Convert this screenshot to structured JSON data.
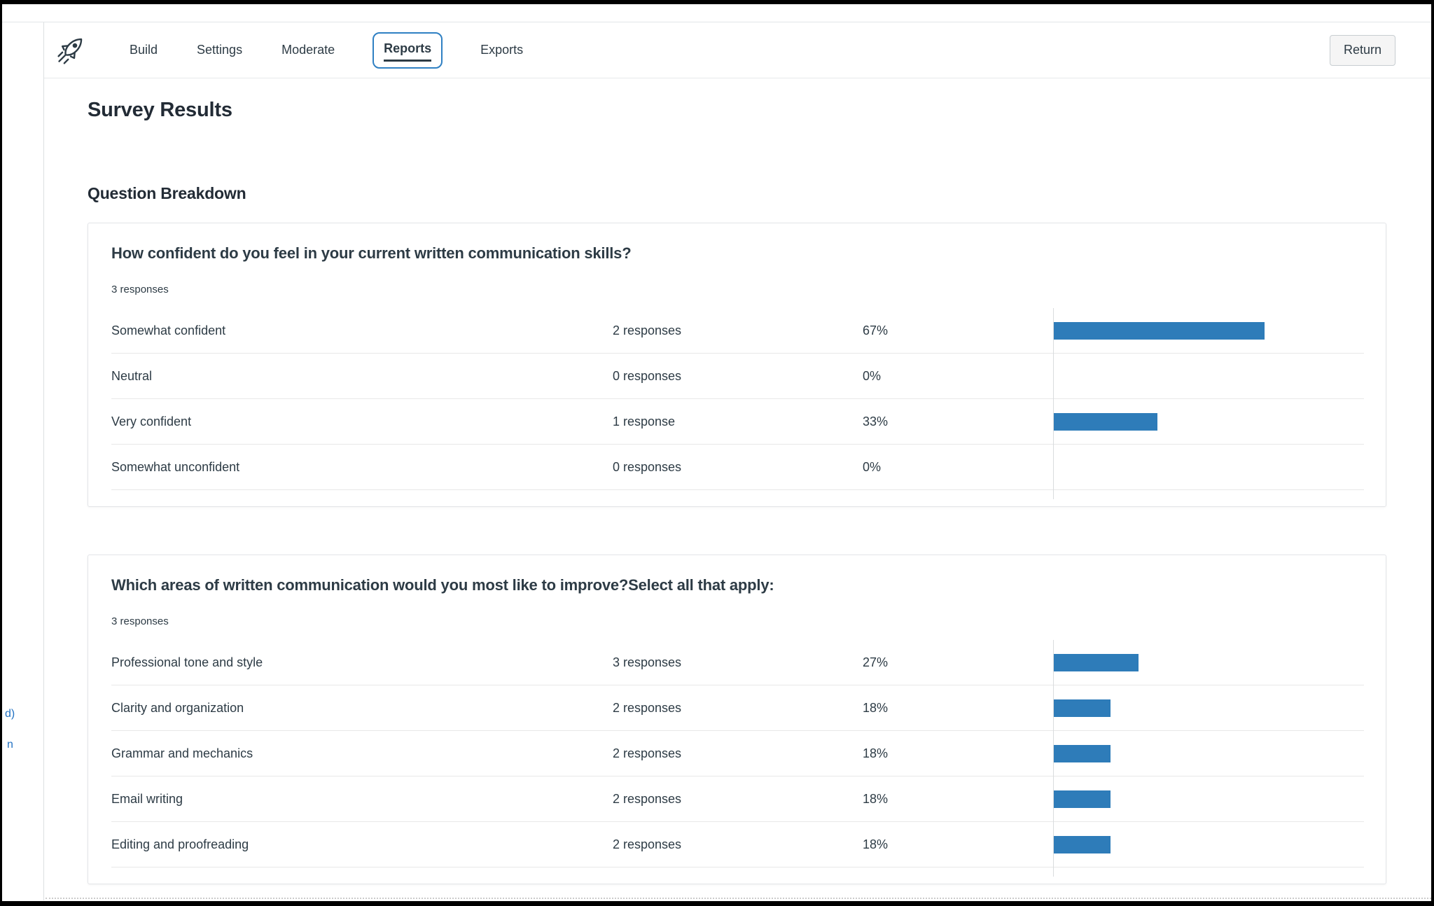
{
  "nav": {
    "logo": "rocket-logo",
    "tabs": [
      {
        "label": "Build",
        "active": false
      },
      {
        "label": "Settings",
        "active": false
      },
      {
        "label": "Moderate",
        "active": false
      },
      {
        "label": "Reports",
        "active": true
      },
      {
        "label": "Exports",
        "active": false
      }
    ],
    "return_button": "Return"
  },
  "page": {
    "title": "Survey Results",
    "section_heading": "Question Breakdown"
  },
  "chart_data": [
    {
      "type": "bar",
      "orientation": "horizontal",
      "title": "How confident do you feel in your current written communication skills?",
      "subtitle": "3 responses",
      "categories": [
        "Somewhat confident",
        "Neutral",
        "Very confident",
        "Somewhat unconfident"
      ],
      "values": [
        2,
        0,
        1,
        0
      ],
      "value_labels": [
        "2 responses",
        "0 responses",
        "1 response",
        "0 responses"
      ],
      "percents": [
        67,
        0,
        33,
        0
      ],
      "percent_labels": [
        "67%",
        "0%",
        "33%",
        "0%"
      ],
      "xlim": [
        0,
        100
      ],
      "grid": false,
      "legend": false,
      "bar_color": "#2E7CB9"
    },
    {
      "type": "bar",
      "orientation": "horizontal",
      "title": "Which areas of written communication would you most like to improve?Select all that apply:",
      "subtitle": "3 responses",
      "categories": [
        "Professional tone and style",
        "Clarity and organization",
        "Grammar and mechanics",
        "Email writing",
        "Editing and proofreading"
      ],
      "values": [
        3,
        2,
        2,
        2,
        2
      ],
      "value_labels": [
        "3 responses",
        "2 responses",
        "2 responses",
        "2 responses",
        "2 responses"
      ],
      "percents": [
        27,
        18,
        18,
        18,
        18
      ],
      "percent_labels": [
        "27%",
        "18%",
        "18%",
        "18%",
        "18%"
      ],
      "xlim": [
        0,
        100
      ],
      "grid": false,
      "legend": false,
      "bar_color": "#2E7CB9"
    }
  ],
  "left_edge": {
    "fragments": [
      "d)",
      "n"
    ]
  },
  "colors": {
    "text": "#2D3B45",
    "heading": "#222B35",
    "link_blue": "#2272C3",
    "bar_blue": "#2E7CB9",
    "active_tab_ring": "#2F80C3",
    "button_bg": "#F5F5F5",
    "button_border": "#C7CDD1",
    "separator": "#E8E8E8"
  }
}
